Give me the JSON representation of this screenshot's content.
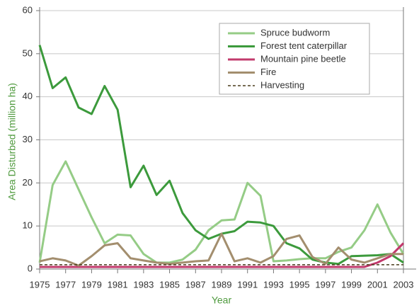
{
  "chart_data": {
    "type": "line",
    "x_label": "Year",
    "y_label": "Area Disturbed (million ha)",
    "x": [
      1975,
      1976,
      1977,
      1978,
      1979,
      1980,
      1981,
      1982,
      1983,
      1984,
      1985,
      1986,
      1987,
      1988,
      1989,
      1990,
      1991,
      1992,
      1993,
      1994,
      1995,
      1996,
      1997,
      1998,
      1999,
      2000,
      2001,
      2002,
      2003
    ],
    "xlim": [
      1975,
      2003
    ],
    "xticks": [
      1975,
      1977,
      1979,
      1981,
      1983,
      1985,
      1987,
      1989,
      1991,
      1993,
      1995,
      1997,
      1999,
      2001,
      2003
    ],
    "ylim": [
      0,
      60
    ],
    "yticks": [
      0,
      10,
      20,
      30,
      40,
      50,
      60
    ],
    "grid": true,
    "legend": "upper right",
    "series": [
      {
        "name": "Spruce budworm",
        "color": "#95cc86",
        "linestyle": "solid",
        "values": [
          1.5,
          19.5,
          25,
          18.5,
          12,
          6,
          8,
          7.8,
          3.5,
          1.5,
          1.5,
          2.2,
          4.5,
          9,
          11.3,
          11.5,
          20,
          17,
          1.8,
          2,
          2.3,
          2.5,
          2.5,
          4,
          5,
          9,
          15,
          8.5,
          3.5
        ]
      },
      {
        "name": "Forest tent caterpillar",
        "color": "#3c9a3c",
        "linestyle": "solid",
        "values": [
          52,
          42,
          44.5,
          37.5,
          36,
          42.5,
          37,
          19,
          24,
          17.2,
          20.5,
          13,
          9,
          7,
          8.2,
          8.8,
          11,
          10.8,
          10,
          6,
          4.8,
          2.2,
          1.5,
          1.2,
          3,
          3.1,
          3.2,
          3.5,
          1.5
        ]
      },
      {
        "name": "Mountain pine beetle",
        "color": "#c23a6c",
        "linestyle": "solid",
        "values": [
          0.5,
          0.5,
          0.5,
          0.5,
          0.5,
          0.5,
          0.5,
          0.5,
          0.5,
          0.5,
          0.5,
          0.5,
          0.5,
          0.5,
          0.5,
          0.5,
          0.5,
          0.5,
          0.5,
          0.5,
          0.5,
          0.5,
          0.5,
          0.5,
          0.5,
          0.5,
          1.5,
          3,
          6
        ]
      },
      {
        "name": "Fire",
        "color": "#a38e6e",
        "linestyle": "solid",
        "values": [
          1.8,
          2.5,
          2,
          0.8,
          3,
          5.5,
          6,
          2.5,
          2,
          1.5,
          1.2,
          1.5,
          1.8,
          2,
          8.2,
          1.8,
          2.5,
          1.5,
          3,
          7,
          7.8,
          2.8,
          1.2,
          5,
          2.2,
          1.5,
          2.5,
          3.5,
          3.5
        ]
      },
      {
        "name": "Harvesting",
        "color": "#4a3c1c",
        "linestyle": "dashed",
        "values": [
          1,
          1,
          1,
          1,
          1,
          1,
          1,
          1,
          1,
          1,
          1,
          1,
          1,
          1,
          1,
          1,
          1,
          1,
          1,
          1,
          1,
          1,
          1,
          1,
          1,
          1,
          1,
          1,
          1
        ]
      }
    ]
  }
}
